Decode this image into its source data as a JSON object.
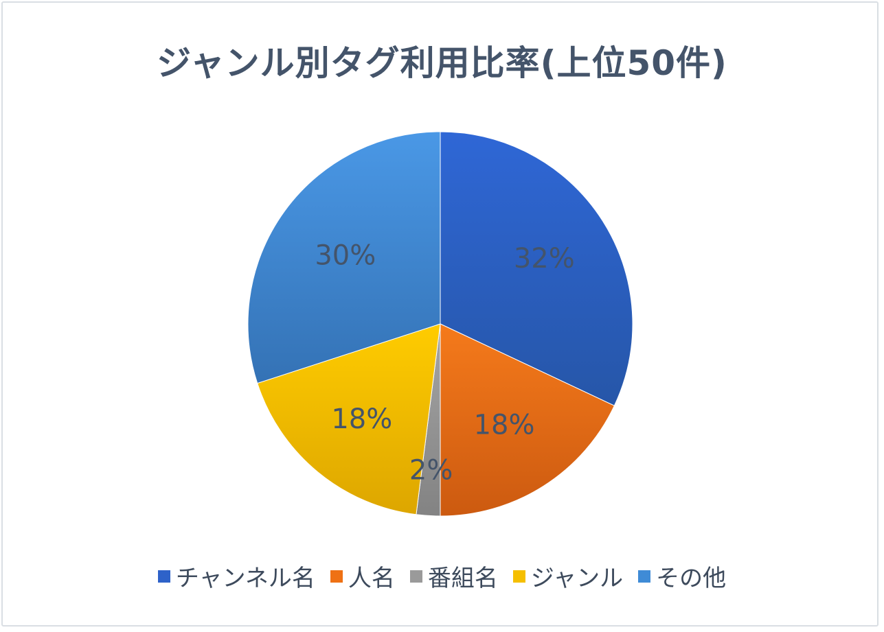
{
  "chart_data": {
    "type": "pie",
    "title": "ジャンル別タグ利用比率(上位50件)",
    "categories": [
      "チャンネル名",
      "人名",
      "番組名",
      "ジャンル",
      "その他"
    ],
    "values": [
      32,
      18,
      2,
      18,
      30
    ],
    "labels": [
      "32%",
      "18%",
      "2%",
      "18%",
      "30%"
    ],
    "colors": [
      "#2e62c9",
      "#ef7114",
      "#9a9a9a",
      "#f5bf00",
      "#3f8bd6"
    ],
    "legend_position": "bottom"
  }
}
